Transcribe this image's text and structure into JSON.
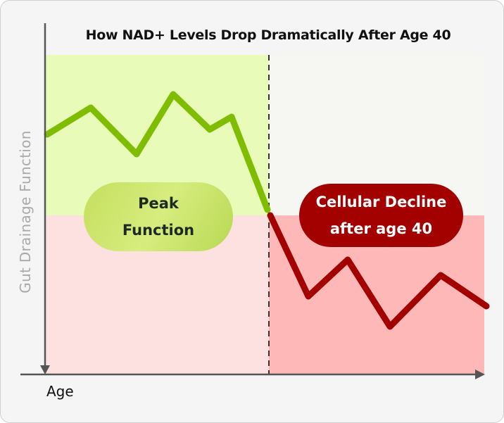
{
  "title": "How NAD+ Levels Drop Dramatically After Age 40",
  "y_axis_label": "Gut Drainage Function",
  "x_axis_label": "Age",
  "labels": {
    "peak_line1": "Peak",
    "peak_line2": "Function",
    "decline_line1": "Cellular Decline",
    "decline_line2": "after age 40"
  },
  "colors": {
    "peak_zone": "#e8fbb8",
    "low_zone": "#fde1e1",
    "decline_zone": "#feb8b8",
    "upper_right_zone": "#f6f7f2",
    "green_line": "#7fbd00",
    "red_line": "#a30000"
  }
}
